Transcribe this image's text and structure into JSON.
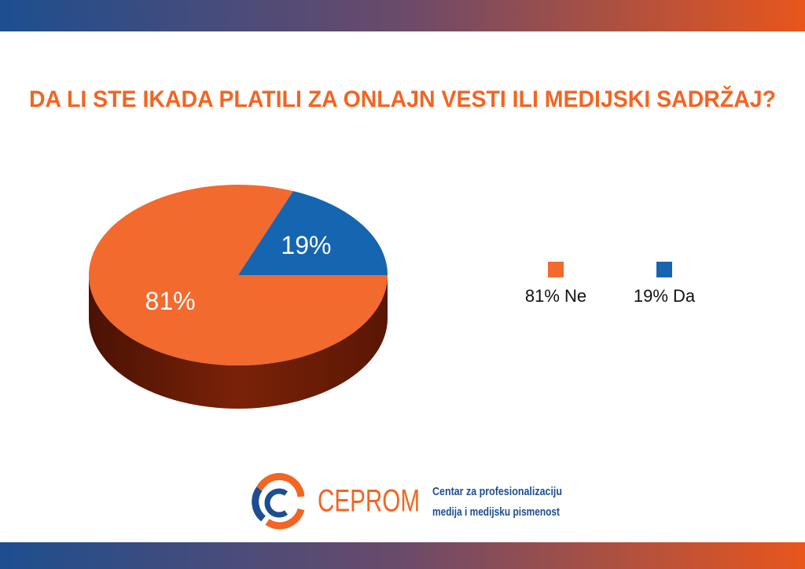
{
  "chart_data": {
    "type": "pie",
    "title": "DA LI STE IKADA PLATILI ZA ONLAJN VESTI ILI MEDIJSKI SADRŽAJ?",
    "categories": [
      "Ne",
      "Da"
    ],
    "values": [
      81,
      19
    ],
    "value_labels": [
      "81%",
      "19%"
    ],
    "legend_labels": [
      "81% Ne",
      "19% Da"
    ],
    "colors": [
      "#f26a2e",
      "#1565b0"
    ]
  },
  "footer": {
    "logo": "CEPROM",
    "tagline": [
      "Centar za profesionalizaciju",
      "medija i medijsku pismenost"
    ]
  }
}
